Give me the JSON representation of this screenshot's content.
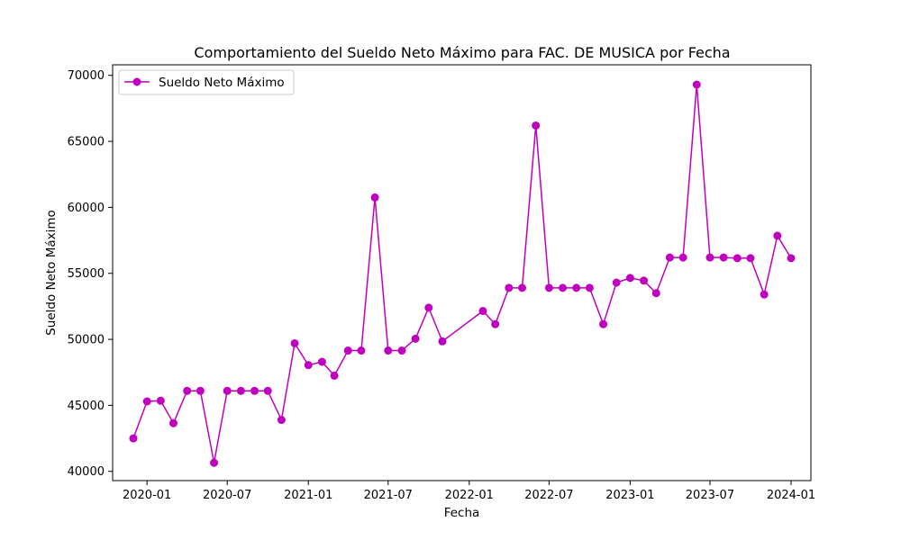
{
  "chart_data": {
    "type": "line",
    "title": "Comportamiento del Sueldo Neto Máximo para FAC. DE MUSICA por Fecha",
    "xlabel": "Fecha",
    "ylabel": "Sueldo Neto Máximo",
    "x_ticks": [
      "2020-01",
      "2020-07",
      "2021-01",
      "2021-07",
      "2022-01",
      "2022-07",
      "2023-01",
      "2023-07",
      "2024-01"
    ],
    "y_ticks": [
      40000,
      45000,
      50000,
      55000,
      60000,
      65000,
      70000
    ],
    "xlim": [
      "2019-10-15",
      "2024-02-15"
    ],
    "ylim": [
      39300,
      70800
    ],
    "grid": false,
    "legend": "top-left",
    "color": "#bf00bf",
    "series": [
      {
        "name": "Sueldo Neto Máximo",
        "x": [
          "2019-12-01",
          "2020-01-01",
          "2020-02-01",
          "2020-03-01",
          "2020-04-01",
          "2020-05-01",
          "2020-06-01",
          "2020-07-01",
          "2020-08-01",
          "2020-09-01",
          "2020-10-01",
          "2020-11-01",
          "2020-12-01",
          "2021-01-01",
          "2021-02-01",
          "2021-03-01",
          "2021-04-01",
          "2021-05-01",
          "2021-06-01",
          "2021-07-01",
          "2021-08-01",
          "2021-09-01",
          "2021-10-01",
          "2021-11-01",
          "2022-02-01",
          "2022-03-01",
          "2022-04-01",
          "2022-05-01",
          "2022-06-01",
          "2022-07-01",
          "2022-08-01",
          "2022-09-01",
          "2022-10-01",
          "2022-11-01",
          "2022-12-01",
          "2023-01-01",
          "2023-02-01",
          "2023-03-01",
          "2023-04-01",
          "2023-05-01",
          "2023-06-01",
          "2023-07-01",
          "2023-08-01",
          "2023-09-01",
          "2023-10-01",
          "2023-11-01",
          "2023-12-01",
          "2024-01-01"
        ],
        "values": [
          42500,
          45300,
          45350,
          43650,
          46100,
          46100,
          40650,
          46100,
          46100,
          46100,
          46100,
          43900,
          49700,
          48050,
          48300,
          47250,
          49150,
          49150,
          60750,
          49150,
          49150,
          50050,
          52400,
          49850,
          52150,
          51150,
          53900,
          53900,
          66200,
          53900,
          53900,
          53900,
          53900,
          51150,
          54300,
          54650,
          54450,
          53500,
          56200,
          56200,
          69300,
          56200,
          56200,
          56150,
          56150,
          53400,
          57850,
          56150
        ]
      }
    ]
  }
}
